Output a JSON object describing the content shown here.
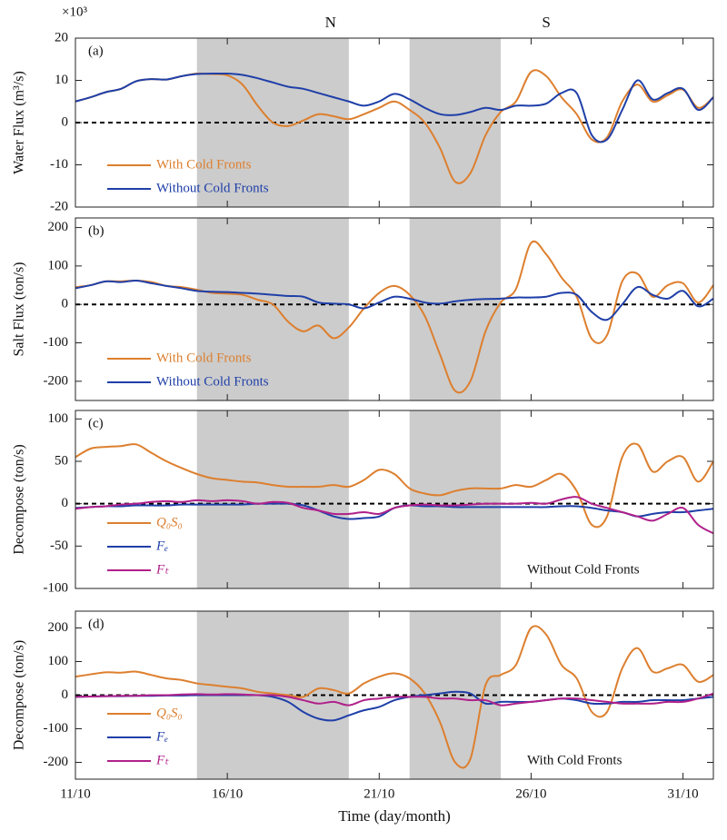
{
  "chart_data": [
    {
      "type": "line",
      "panel_label": "(a)",
      "y_label": "Water Flux (m³/s)",
      "y_multiplier": "×10³",
      "annotations": [
        {
          "text": "N",
          "x": 19.4
        },
        {
          "text": "S",
          "x": 26.5
        }
      ],
      "shaded": [
        [
          15,
          20
        ],
        [
          22,
          25
        ]
      ],
      "zero_line": true,
      "legend": "lower left",
      "x": [
        11,
        11.5,
        12,
        12.5,
        13,
        13.5,
        14,
        14.5,
        15,
        15.5,
        16,
        16.5,
        17,
        17.5,
        18,
        18.5,
        19,
        19.5,
        20,
        20.5,
        21,
        21.5,
        22,
        22.5,
        23,
        23.5,
        24,
        24.5,
        25,
        25.5,
        26,
        26.5,
        27,
        27.5,
        28,
        28.5,
        29,
        29.5,
        30,
        30.5,
        31,
        31.5,
        32
      ],
      "xlim": [
        11,
        32
      ],
      "ylim": [
        -20,
        20
      ],
      "yticks": [
        -20,
        -10,
        0,
        10,
        20
      ],
      "series": [
        {
          "name": "With Cold Fronts",
          "color": "#dd7f2e",
          "values": [
            5,
            6,
            7.2,
            8,
            9.8,
            10.3,
            10.2,
            11,
            11.6,
            11.5,
            11.2,
            9,
            4,
            0,
            -0.8,
            0.5,
            2,
            1.5,
            0.8,
            2,
            3.5,
            5,
            3,
            0,
            -6,
            -14,
            -12,
            -3,
            2.5,
            5,
            12,
            11,
            6,
            2,
            -4,
            -3.5,
            5,
            9,
            5,
            6.5,
            7.8,
            3.5,
            6
          ]
        },
        {
          "name": "Without Cold Fronts",
          "color": "#1f3fa8",
          "values": [
            5,
            6,
            7.2,
            8,
            9.8,
            10.3,
            10.2,
            11,
            11.5,
            11.6,
            11.6,
            11.3,
            10.5,
            9.5,
            8.5,
            8,
            7,
            6,
            5,
            4,
            5,
            6.8,
            5.5,
            3.5,
            2,
            1.8,
            2.5,
            3.5,
            3,
            4,
            4,
            4.5,
            7,
            7,
            -3,
            -4,
            3,
            10,
            5.5,
            7,
            8,
            3,
            6
          ]
        }
      ]
    },
    {
      "type": "line",
      "panel_label": "(b)",
      "y_label": "Salt Flux (ton/s)",
      "shaded": [
        [
          15,
          20
        ],
        [
          22,
          25
        ]
      ],
      "zero_line": true,
      "legend": "lower left",
      "x": [
        11,
        11.5,
        12,
        12.5,
        13,
        13.5,
        14,
        14.5,
        15,
        15.5,
        16,
        16.5,
        17,
        17.5,
        18,
        18.5,
        19,
        19.5,
        20,
        20.5,
        21,
        21.5,
        22,
        22.5,
        23,
        23.5,
        24,
        24.5,
        25,
        25.5,
        26,
        26.5,
        27,
        27.5,
        28,
        28.5,
        29,
        29.5,
        30,
        30.5,
        31,
        31.5,
        32
      ],
      "xlim": [
        11,
        32
      ],
      "ylim": [
        -250,
        225
      ],
      "yticks": [
        -200,
        -100,
        0,
        100,
        200
      ],
      "series": [
        {
          "name": "With Cold Fronts",
          "color": "#dd7f2e",
          "values": [
            45,
            50,
            60,
            60,
            62,
            58,
            48,
            45,
            38,
            30,
            28,
            25,
            12,
            0,
            -45,
            -70,
            -55,
            -88,
            -60,
            -10,
            30,
            48,
            25,
            -30,
            -130,
            -225,
            -200,
            -70,
            5,
            40,
            160,
            130,
            70,
            20,
            -90,
            -80,
            60,
            80,
            20,
            50,
            55,
            5,
            50
          ]
        },
        {
          "name": "Without Cold Fronts",
          "color": "#1f3fa8",
          "values": [
            42,
            50,
            60,
            58,
            62,
            55,
            48,
            42,
            35,
            33,
            32,
            30,
            28,
            25,
            22,
            20,
            5,
            2,
            0,
            -10,
            5,
            20,
            15,
            5,
            2,
            8,
            12,
            14,
            15,
            18,
            18,
            20,
            30,
            25,
            -20,
            -40,
            0,
            45,
            25,
            15,
            35,
            -5,
            15
          ]
        }
      ]
    },
    {
      "type": "line",
      "panel_label": "(c)",
      "y_label": "Decompose (ton/s)",
      "note": "Without Cold Fronts",
      "shaded": [
        [
          15,
          20
        ],
        [
          22,
          25
        ]
      ],
      "zero_line": true,
      "legend": "lower left",
      "x": [
        11,
        11.5,
        12,
        12.5,
        13,
        13.5,
        14,
        14.5,
        15,
        15.5,
        16,
        16.5,
        17,
        17.5,
        18,
        18.5,
        19,
        19.5,
        20,
        20.5,
        21,
        21.5,
        22,
        22.5,
        23,
        23.5,
        24,
        24.5,
        25,
        25.5,
        26,
        26.5,
        27,
        27.5,
        28,
        28.5,
        29,
        29.5,
        30,
        30.5,
        31,
        31.5,
        32
      ],
      "xlim": [
        11,
        32
      ],
      "ylim": [
        -100,
        110
      ],
      "yticks": [
        -100,
        -50,
        0,
        50,
        100
      ],
      "series": [
        {
          "name": "Q₀S₀",
          "color": "#dd7f2e",
          "values": [
            55,
            65,
            67,
            68,
            70,
            60,
            50,
            42,
            35,
            30,
            28,
            26,
            25,
            22,
            20,
            20,
            20,
            22,
            20,
            28,
            40,
            35,
            18,
            12,
            10,
            15,
            18,
            18,
            18,
            22,
            20,
            28,
            35,
            15,
            -25,
            -15,
            55,
            70,
            38,
            50,
            55,
            26,
            50
          ]
        },
        {
          "name": "Fₑ",
          "color": "#1f3fa8",
          "values": [
            -5,
            -4,
            -3,
            -3,
            -2,
            -2,
            -2,
            -1,
            -1,
            -1,
            -1,
            -1,
            0,
            0,
            0,
            -2,
            -8,
            -15,
            -18,
            -17,
            -15,
            -5,
            -2,
            -3,
            -3,
            -4,
            -4,
            -4,
            -4,
            -4,
            -4,
            -4,
            -3,
            -3,
            -5,
            -8,
            -10,
            -15,
            -12,
            -10,
            -10,
            -8,
            -6
          ]
        },
        {
          "name": "Fₜ",
          "color": "#b0208a",
          "values": [
            -6,
            -4,
            -3,
            -1,
            0,
            2,
            3,
            2,
            4,
            3,
            4,
            3,
            0,
            2,
            1,
            -5,
            -8,
            -12,
            -12,
            -10,
            -12,
            -5,
            -2,
            -1,
            -2,
            -2,
            -1,
            0,
            0,
            0,
            1,
            0,
            5,
            8,
            0,
            -5,
            -10,
            -15,
            -20,
            -12,
            -5,
            -25,
            -35
          ]
        }
      ]
    },
    {
      "type": "line",
      "panel_label": "(d)",
      "y_label": "Decompose (ton/s)",
      "note": "With Cold Fronts",
      "x_label": "Time (day/month)",
      "shaded": [
        [
          15,
          20
        ],
        [
          22,
          25
        ]
      ],
      "zero_line": true,
      "legend": "lower left",
      "x": [
        11,
        11.5,
        12,
        12.5,
        13,
        13.5,
        14,
        14.5,
        15,
        15.5,
        16,
        16.5,
        17,
        17.5,
        18,
        18.5,
        19,
        19.5,
        20,
        20.5,
        21,
        21.5,
        22,
        22.5,
        23,
        23.5,
        24,
        24.5,
        25,
        25.5,
        26,
        26.5,
        27,
        27.5,
        28,
        28.5,
        29,
        29.5,
        30,
        30.5,
        31,
        31.5,
        32
      ],
      "xlim": [
        11,
        32
      ],
      "ylim": [
        -250,
        250
      ],
      "yticks": [
        -200,
        -100,
        0,
        100,
        200
      ],
      "xticks": [
        {
          "value": 11,
          "label": "11/10"
        },
        {
          "value": 16,
          "label": "16/10"
        },
        {
          "value": 21,
          "label": "21/10"
        },
        {
          "value": 26,
          "label": "26/10"
        },
        {
          "value": 31,
          "label": "31/10"
        }
      ],
      "series": [
        {
          "name": "Q₀S₀",
          "color": "#dd7f2e",
          "values": [
            55,
            62,
            68,
            67,
            70,
            60,
            50,
            45,
            35,
            30,
            25,
            20,
            10,
            5,
            0,
            -5,
            20,
            15,
            5,
            35,
            55,
            65,
            50,
            5,
            -80,
            -200,
            -190,
            30,
            60,
            90,
            200,
            180,
            90,
            50,
            -50,
            -50,
            80,
            140,
            70,
            80,
            90,
            40,
            60
          ]
        },
        {
          "name": "Fₑ",
          "color": "#1f3fa8",
          "values": [
            -5,
            -4,
            -3,
            -3,
            -2,
            -2,
            -1,
            -1,
            0,
            0,
            0,
            0,
            0,
            -5,
            -20,
            -50,
            -70,
            -75,
            -60,
            -45,
            -35,
            -15,
            -5,
            0,
            5,
            10,
            5,
            -25,
            -20,
            -20,
            -20,
            -15,
            -10,
            -15,
            -25,
            -25,
            -20,
            -20,
            -15,
            -15,
            -15,
            -10,
            -5
          ]
        },
        {
          "name": "Fₜ",
          "color": "#b0208a",
          "values": [
            -5,
            -4,
            -3,
            -2,
            -2,
            0,
            0,
            2,
            3,
            2,
            3,
            2,
            0,
            0,
            -5,
            -15,
            -25,
            -20,
            -30,
            -15,
            -10,
            -5,
            -5,
            -5,
            -10,
            -10,
            -15,
            -15,
            -30,
            -25,
            -20,
            -15,
            -10,
            -10,
            -15,
            -20,
            -25,
            -25,
            -25,
            -20,
            -20,
            -10,
            5
          ]
        }
      ]
    }
  ]
}
